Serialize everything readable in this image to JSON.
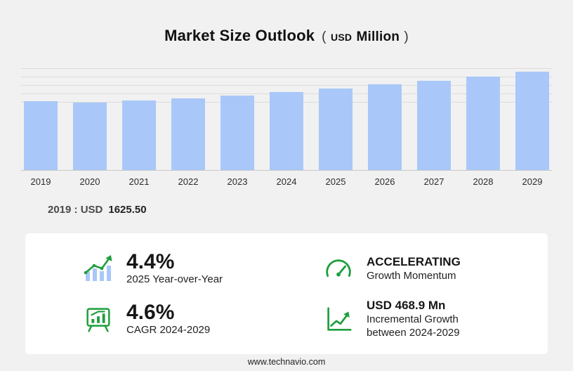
{
  "title": {
    "main": "Market Size Outlook",
    "open_paren": "(",
    "currency": "USD",
    "unit": "Million",
    "close_paren": ")"
  },
  "chart_data": {
    "type": "bar",
    "title": "Market Size Outlook (USD Million)",
    "categories": [
      "2019",
      "2020",
      "2021",
      "2022",
      "2023",
      "2024",
      "2025",
      "2026",
      "2027",
      "2028",
      "2029"
    ],
    "values": [
      1625.5,
      1601.2,
      1642.8,
      1698.4,
      1763.9,
      1858.5,
      1940.3,
      2028.9,
      2121.7,
      2219.5,
      2327.4
    ],
    "labeled_values": {
      "2019": "1625.50"
    },
    "xlabel": "",
    "ylabel": "",
    "ylim": [
      0,
      2400
    ],
    "gridlines": [
      1600,
      1800,
      2000,
      2200,
      2400
    ],
    "grid": true,
    "legend": false,
    "bar_color": "#a9c8f9"
  },
  "baseline_note": {
    "label": "2019 : USD",
    "value": "1625.50"
  },
  "stats": {
    "yoy": {
      "value": "4.4%",
      "label": "2025 Year-over-Year"
    },
    "momentum": {
      "value": "ACCELERATING",
      "label": "Growth Momentum"
    },
    "cagr": {
      "value": "4.6%",
      "label": "CAGR 2024-2029"
    },
    "incremental": {
      "value": "USD 468.9 Mn",
      "label_line1": "Incremental Growth",
      "label_line2": "between 2024-2029"
    }
  },
  "footer": {
    "url": "www.technavio.com"
  },
  "colors": {
    "accent_green": "#1e9e3c",
    "bar_blue": "#a9c8f9",
    "background": "#f1f1f1",
    "panel": "#ffffff"
  }
}
